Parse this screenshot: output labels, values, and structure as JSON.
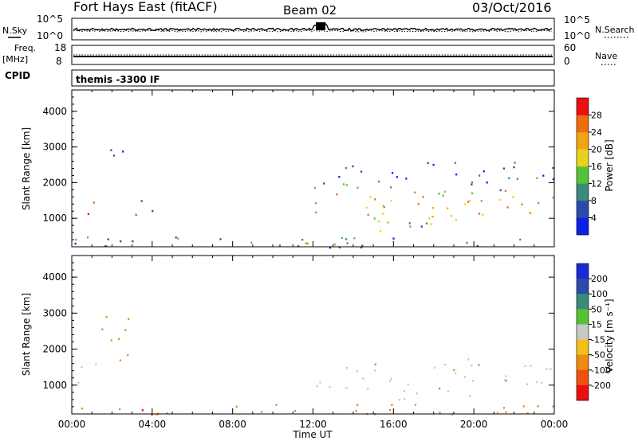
{
  "header": {
    "station": "Fort Hays East (fitACF)",
    "beam": "Beam 02",
    "date": "03/Oct/2016"
  },
  "summary_panels": {
    "noise": {
      "left_label": "N.Sky",
      "left_ticks": [
        "10^5",
        "10^0"
      ],
      "right_label": "N.Search",
      "right_ticks": [
        "10^5",
        "10^0"
      ]
    },
    "frequency": {
      "left_label": "Freq.",
      "left_unit": "[MHz]",
      "left_ticks": [
        "18",
        "8"
      ],
      "right_label": "Nave",
      "right_ticks": [
        "60",
        "0"
      ]
    },
    "cpid": {
      "label": "CPID",
      "value": "themis -3300 IF"
    }
  },
  "chart_data": [
    {
      "type": "heatmap",
      "name": "power",
      "xlabel": "",
      "ylabel": "Slant Range [km]",
      "x_range_hours": [
        0,
        24
      ],
      "ylim": [
        200,
        4600
      ],
      "yticks": [
        1000,
        2000,
        3000,
        4000
      ],
      "colorbar": {
        "label": "Power [dB]",
        "ticks": [
          "4",
          "8",
          "12",
          "16",
          "20",
          "24",
          "28"
        ],
        "range": [
          0,
          32
        ],
        "colors": [
          "#0a22e6",
          "#2a4ca8",
          "#3b8a7c",
          "#55c236",
          "#e8d21c",
          "#f2a414",
          "#f06a10",
          "#e81010"
        ]
      },
      "regions": [
        {
          "t": [
            0.0,
            1.2
          ],
          "r": [
            900,
            1700
          ],
          "level": 22
        },
        {
          "t": [
            1.4,
            2.8
          ],
          "r": [
            2200,
            3000
          ],
          "level": 8
        },
        {
          "t": [
            3.0,
            4.0
          ],
          "r": [
            900,
            1600
          ],
          "level": 8
        },
        {
          "t": [
            12.0,
            24.0
          ],
          "r": [
            900,
            1800
          ],
          "level": 20
        },
        {
          "t": [
            12.0,
            24.0
          ],
          "r": [
            1800,
            2600
          ],
          "level": 8
        },
        {
          "t": [
            15.0,
            20.0
          ],
          "r": [
            600,
            900
          ],
          "level": 14
        },
        {
          "t": [
            0.0,
            24.0
          ],
          "r": [
            200,
            500
          ],
          "level": 8
        }
      ]
    },
    {
      "type": "heatmap",
      "name": "velocity",
      "xlabel": "Time UT",
      "ylabel": "Slant Range [km]",
      "xticks": [
        "00:00",
        "04:00",
        "08:00",
        "12:00",
        "16:00",
        "20:00",
        "00:00"
      ],
      "x_range_hours": [
        0,
        24
      ],
      "ylim": [
        200,
        4600
      ],
      "yticks": [
        1000,
        2000,
        3000,
        4000
      ],
      "colorbar": {
        "label": "Velocity [m s⁻¹]",
        "ticks": [
          "200",
          "100",
          "50",
          "15",
          "-15",
          "-50",
          "-100",
          "-200"
        ],
        "colors": [
          "#1a2ad8",
          "#2a4ca8",
          "#3b8a7c",
          "#55c236",
          "#c8c8c8",
          "#f2c014",
          "#f08a10",
          "#f05010",
          "#e81010"
        ]
      },
      "regions": [
        {
          "t": [
            0.0,
            1.3
          ],
          "r": [
            900,
            1600
          ],
          "level": "ground"
        },
        {
          "t": [
            1.3,
            2.8
          ],
          "r": [
            1700,
            3000
          ],
          "level": "-50"
        },
        {
          "t": [
            12.0,
            24.0
          ],
          "r": [
            900,
            1800
          ],
          "level": "ground"
        },
        {
          "t": [
            15.0,
            20.0
          ],
          "r": [
            600,
            900
          ],
          "level": "ground"
        },
        {
          "t": [
            0.0,
            24.0
          ],
          "r": [
            200,
            500
          ],
          "level": "-50"
        }
      ]
    }
  ]
}
